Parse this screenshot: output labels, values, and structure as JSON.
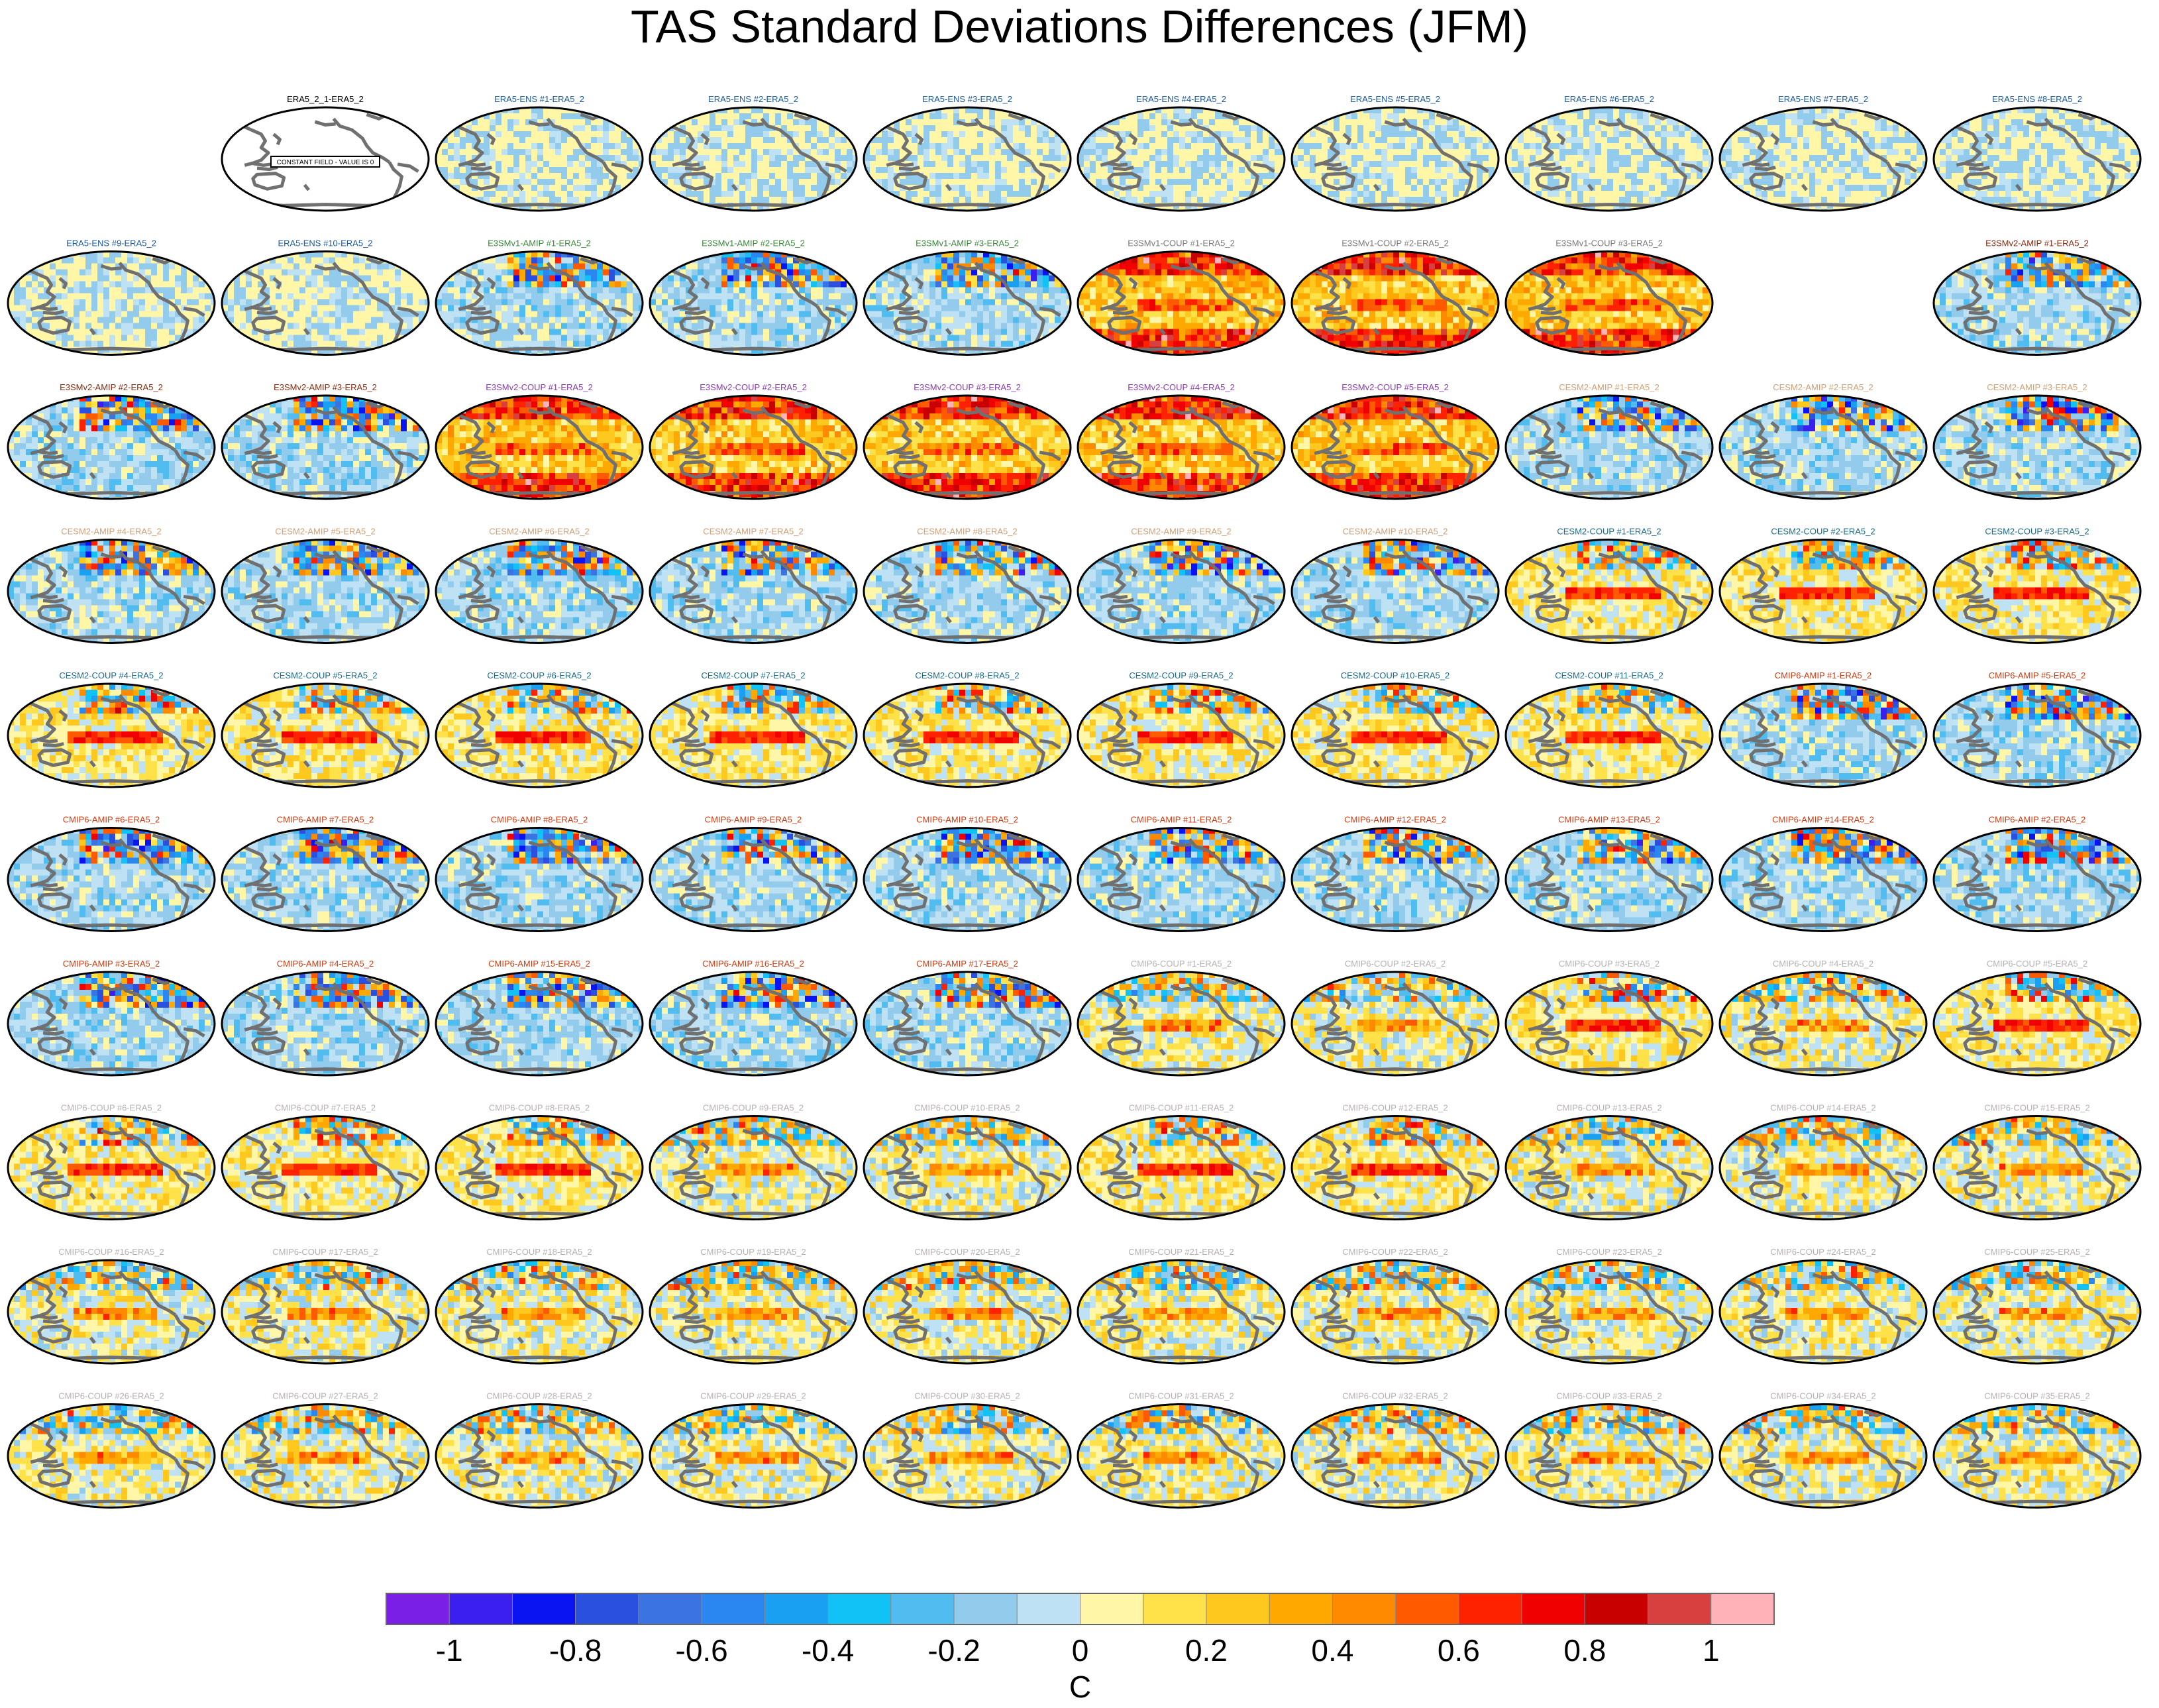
{
  "figure": {
    "title": "TAS Standard Deviations Differences (JFM)"
  },
  "chart_data": {
    "type": "heatmap",
    "title": "TAS Standard Deviations Differences (JFM)",
    "description_of_panels": "Grid of global maps (Pacific-centred elliptical projection) showing model minus ERA5 standard deviation differences",
    "units_label": "C",
    "colorbar": {
      "colors": [
        "#7a1fe6",
        "#3a1ff0",
        "#0a14f2",
        "#2a50e0",
        "#3b74e2",
        "#2a86f0",
        "#1aa0f2",
        "#10c2f5",
        "#50bcef",
        "#92cbec",
        "#bfe1f4",
        "#fff6a8",
        "#ffe24a",
        "#ffc81e",
        "#ffa800",
        "#ff8a00",
        "#ff5a00",
        "#ff2200",
        "#f00000",
        "#c80000",
        "#d84040",
        "#ffb2b8"
      ],
      "tick_labels": [
        "-1",
        "-0.8",
        "-0.6",
        "-0.4",
        "-0.2",
        "0",
        "0.2",
        "0.4",
        "0.6",
        "0.8",
        "1"
      ],
      "range": [
        -1.1,
        1.1
      ]
    },
    "panels": [
      {
        "label": "",
        "blank": true
      },
      {
        "label": "ERA5_2_1-ERA5_2",
        "color": "#000000",
        "style": "empty",
        "note": "CONSTANT FIELD - VALUE IS 0"
      },
      {
        "label": "ERA5-ENS #1-ERA5_2",
        "color": "#1a5aa0",
        "style": "ens"
      },
      {
        "label": "ERA5-ENS #2-ERA5_2",
        "color": "#1a5aa0",
        "style": "ens"
      },
      {
        "label": "ERA5-ENS #3-ERA5_2",
        "color": "#1a5aa0",
        "style": "ens"
      },
      {
        "label": "ERA5-ENS #4-ERA5_2",
        "color": "#1a5aa0",
        "style": "ens"
      },
      {
        "label": "ERA5-ENS #5-ERA5_2",
        "color": "#1a5aa0",
        "style": "ens"
      },
      {
        "label": "ERA5-ENS #6-ERA5_2",
        "color": "#1a5aa0",
        "style": "ens"
      },
      {
        "label": "ERA5-ENS #7-ERA5_2",
        "color": "#1a5aa0",
        "style": "ens"
      },
      {
        "label": "ERA5-ENS #8-ERA5_2",
        "color": "#1a5aa0",
        "style": "ens"
      },
      {
        "label": "ERA5-ENS #9-ERA5_2",
        "color": "#1a5aa0",
        "style": "ens"
      },
      {
        "label": "ERA5-ENS #10-ERA5_2",
        "color": "#1a5aa0",
        "style": "ens"
      },
      {
        "label": "E3SMv1-AMIP #1-ERA5_2",
        "color": "#3a8a3a",
        "style": "amip"
      },
      {
        "label": "E3SMv1-AMIP #2-ERA5_2",
        "color": "#3a8a3a",
        "style": "amip"
      },
      {
        "label": "E3SMv1-AMIP #3-ERA5_2",
        "color": "#3a8a3a",
        "style": "amip"
      },
      {
        "label": "E3SMv1-COUP #1-ERA5_2",
        "color": "#7a7a7a",
        "style": "coup_warm"
      },
      {
        "label": "E3SMv1-COUP #2-ERA5_2",
        "color": "#7a7a7a",
        "style": "coup_warm"
      },
      {
        "label": "E3SMv1-COUP #3-ERA5_2",
        "color": "#7a7a7a",
        "style": "coup_warm"
      },
      {
        "label": "",
        "blank": true
      },
      {
        "label": "E3SMv2-AMIP #1-ERA5_2",
        "color": "#8a2a10",
        "style": "amip"
      },
      {
        "label": "E3SMv2-AMIP #2-ERA5_2",
        "color": "#8a2a10",
        "style": "amip"
      },
      {
        "label": "E3SMv2-AMIP #3-ERA5_2",
        "color": "#8a2a10",
        "style": "amip"
      },
      {
        "label": "E3SMv2-COUP #1-ERA5_2",
        "color": "#8a3ab0",
        "style": "coup_warm"
      },
      {
        "label": "E3SMv2-COUP #2-ERA5_2",
        "color": "#8a3ab0",
        "style": "coup_warm"
      },
      {
        "label": "E3SMv2-COUP #3-ERA5_2",
        "color": "#8a3ab0",
        "style": "coup_warm"
      },
      {
        "label": "E3SMv2-COUP #4-ERA5_2",
        "color": "#8a3ab0",
        "style": "coup_warm"
      },
      {
        "label": "E3SMv2-COUP #5-ERA5_2",
        "color": "#8a3ab0",
        "style": "coup_warm"
      },
      {
        "label": "CESM2-AMIP #1-ERA5_2",
        "color": "#d0a078",
        "style": "amip"
      },
      {
        "label": "CESM2-AMIP #2-ERA5_2",
        "color": "#d0a078",
        "style": "amip"
      },
      {
        "label": "CESM2-AMIP #3-ERA5_2",
        "color": "#d0a078",
        "style": "amip"
      },
      {
        "label": "CESM2-AMIP #4-ERA5_2",
        "color": "#d0a078",
        "style": "amip"
      },
      {
        "label": "CESM2-AMIP #5-ERA5_2",
        "color": "#d0a078",
        "style": "amip"
      },
      {
        "label": "CESM2-AMIP #6-ERA5_2",
        "color": "#d0a078",
        "style": "amip"
      },
      {
        "label": "CESM2-AMIP #7-ERA5_2",
        "color": "#d0a078",
        "style": "amip"
      },
      {
        "label": "CESM2-AMIP #8-ERA5_2",
        "color": "#d0a078",
        "style": "amip"
      },
      {
        "label": "CESM2-AMIP #9-ERA5_2",
        "color": "#d0a078",
        "style": "amip"
      },
      {
        "label": "CESM2-AMIP #10-ERA5_2",
        "color": "#d0a078",
        "style": "amip"
      },
      {
        "label": "CESM2-COUP #1-ERA5_2",
        "color": "#1a6a8a",
        "style": "coup_enso"
      },
      {
        "label": "CESM2-COUP #2-ERA5_2",
        "color": "#1a6a8a",
        "style": "coup_enso"
      },
      {
        "label": "CESM2-COUP #3-ERA5_2",
        "color": "#1a6a8a",
        "style": "coup_enso"
      },
      {
        "label": "CESM2-COUP #4-ERA5_2",
        "color": "#1a6a8a",
        "style": "coup_enso"
      },
      {
        "label": "CESM2-COUP #5-ERA5_2",
        "color": "#1a6a8a",
        "style": "coup_enso"
      },
      {
        "label": "CESM2-COUP #6-ERA5_2",
        "color": "#1a6a8a",
        "style": "coup_enso"
      },
      {
        "label": "CESM2-COUP #7-ERA5_2",
        "color": "#1a6a8a",
        "style": "coup_enso"
      },
      {
        "label": "CESM2-COUP #8-ERA5_2",
        "color": "#1a6a8a",
        "style": "coup_enso"
      },
      {
        "label": "CESM2-COUP #9-ERA5_2",
        "color": "#1a6a8a",
        "style": "coup_enso"
      },
      {
        "label": "CESM2-COUP #10-ERA5_2",
        "color": "#1a6a8a",
        "style": "coup_enso"
      },
      {
        "label": "CESM2-COUP #11-ERA5_2",
        "color": "#1a6a8a",
        "style": "coup_enso"
      },
      {
        "label": "CMIP6-AMIP #1-ERA5_2",
        "color": "#d03a10",
        "style": "amip"
      },
      {
        "label": "CMIP6-AMIP #5-ERA5_2",
        "color": "#d03a10",
        "style": "amip"
      },
      {
        "label": "CMIP6-AMIP #6-ERA5_2",
        "color": "#d03a10",
        "style": "amip"
      },
      {
        "label": "CMIP6-AMIP #7-ERA5_2",
        "color": "#d03a10",
        "style": "amip"
      },
      {
        "label": "CMIP6-AMIP #8-ERA5_2",
        "color": "#d03a10",
        "style": "amip"
      },
      {
        "label": "CMIP6-AMIP #9-ERA5_2",
        "color": "#d03a10",
        "style": "amip"
      },
      {
        "label": "CMIP6-AMIP #10-ERA5_2",
        "color": "#d03a10",
        "style": "amip"
      },
      {
        "label": "CMIP6-AMIP #11-ERA5_2",
        "color": "#d03a10",
        "style": "amip"
      },
      {
        "label": "CMIP6-AMIP #12-ERA5_2",
        "color": "#d03a10",
        "style": "amip"
      },
      {
        "label": "CMIP6-AMIP #13-ERA5_2",
        "color": "#d03a10",
        "style": "amip"
      },
      {
        "label": "CMIP6-AMIP #14-ERA5_2",
        "color": "#d03a10",
        "style": "amip"
      },
      {
        "label": "CMIP6-AMIP #2-ERA5_2",
        "color": "#d03a10",
        "style": "amip"
      },
      {
        "label": "CMIP6-AMIP #3-ERA5_2",
        "color": "#d03a10",
        "style": "amip"
      },
      {
        "label": "CMIP6-AMIP #4-ERA5_2",
        "color": "#d03a10",
        "style": "amip"
      },
      {
        "label": "CMIP6-AMIP #15-ERA5_2",
        "color": "#d03a10",
        "style": "amip"
      },
      {
        "label": "CMIP6-AMIP #16-ERA5_2",
        "color": "#d03a10",
        "style": "amip"
      },
      {
        "label": "CMIP6-AMIP #17-ERA5_2",
        "color": "#d03a10",
        "style": "amip"
      },
      {
        "label": "CMIP6-COUP #1-ERA5_2",
        "color": "#b8b0b0",
        "style": "coup"
      },
      {
        "label": "CMIP6-COUP #2-ERA5_2",
        "color": "#b8b0b0",
        "style": "coup"
      },
      {
        "label": "CMIP6-COUP #3-ERA5_2",
        "color": "#b8b0b0",
        "style": "coup_enso"
      },
      {
        "label": "CMIP6-COUP #4-ERA5_2",
        "color": "#b8b0b0",
        "style": "coup"
      },
      {
        "label": "CMIP6-COUP #5-ERA5_2",
        "color": "#b8b0b0",
        "style": "coup_enso"
      },
      {
        "label": "CMIP6-COUP #6-ERA5_2",
        "color": "#b8b0b0",
        "style": "coup_enso"
      },
      {
        "label": "CMIP6-COUP #7-ERA5_2",
        "color": "#b8b0b0",
        "style": "coup_enso"
      },
      {
        "label": "CMIP6-COUP #8-ERA5_2",
        "color": "#b8b0b0",
        "style": "coup_enso"
      },
      {
        "label": "CMIP6-COUP #9-ERA5_2",
        "color": "#b8b0b0",
        "style": "coup"
      },
      {
        "label": "CMIP6-COUP #10-ERA5_2",
        "color": "#b8b0b0",
        "style": "coup"
      },
      {
        "label": "CMIP6-COUP #11-ERA5_2",
        "color": "#b8b0b0",
        "style": "coup_enso"
      },
      {
        "label": "CMIP6-COUP #12-ERA5_2",
        "color": "#b8b0b0",
        "style": "coup_enso"
      },
      {
        "label": "CMIP6-COUP #13-ERA5_2",
        "color": "#b8b0b0",
        "style": "coup"
      },
      {
        "label": "CMIP6-COUP #14-ERA5_2",
        "color": "#b8b0b0",
        "style": "coup"
      },
      {
        "label": "CMIP6-COUP #15-ERA5_2",
        "color": "#b8b0b0",
        "style": "coup"
      },
      {
        "label": "CMIP6-COUP #16-ERA5_2",
        "color": "#b8b0b0",
        "style": "coup"
      },
      {
        "label": "CMIP6-COUP #17-ERA5_2",
        "color": "#b8b0b0",
        "style": "coup"
      },
      {
        "label": "CMIP6-COUP #18-ERA5_2",
        "color": "#b8b0b0",
        "style": "coup"
      },
      {
        "label": "CMIP6-COUP #19-ERA5_2",
        "color": "#b8b0b0",
        "style": "coup"
      },
      {
        "label": "CMIP6-COUP #20-ERA5_2",
        "color": "#b8b0b0",
        "style": "coup"
      },
      {
        "label": "CMIP6-COUP #21-ERA5_2",
        "color": "#b8b0b0",
        "style": "coup"
      },
      {
        "label": "CMIP6-COUP #22-ERA5_2",
        "color": "#b8b0b0",
        "style": "coup"
      },
      {
        "label": "CMIP6-COUP #23-ERA5_2",
        "color": "#b8b0b0",
        "style": "coup"
      },
      {
        "label": "CMIP6-COUP #24-ERA5_2",
        "color": "#b8b0b0",
        "style": "coup"
      },
      {
        "label": "CMIP6-COUP #25-ERA5_2",
        "color": "#b8b0b0",
        "style": "coup"
      },
      {
        "label": "CMIP6-COUP #26-ERA5_2",
        "color": "#b8b0b0",
        "style": "coup"
      },
      {
        "label": "CMIP6-COUP #27-ERA5_2",
        "color": "#b8b0b0",
        "style": "coup"
      },
      {
        "label": "CMIP6-COUP #28-ERA5_2",
        "color": "#b8b0b0",
        "style": "coup"
      },
      {
        "label": "CMIP6-COUP #29-ERA5_2",
        "color": "#b8b0b0",
        "style": "coup"
      },
      {
        "label": "CMIP6-COUP #30-ERA5_2",
        "color": "#b8b0b0",
        "style": "coup"
      },
      {
        "label": "CMIP6-COUP #31-ERA5_2",
        "color": "#b8b0b0",
        "style": "coup"
      },
      {
        "label": "CMIP6-COUP #32-ERA5_2",
        "color": "#b8b0b0",
        "style": "coup"
      },
      {
        "label": "CMIP6-COUP #33-ERA5_2",
        "color": "#b8b0b0",
        "style": "coup"
      },
      {
        "label": "CMIP6-COUP #34-ERA5_2",
        "color": "#b8b0b0",
        "style": "coup"
      },
      {
        "label": "CMIP6-COUP #35-ERA5_2",
        "color": "#b8b0b0",
        "style": "coup"
      }
    ]
  }
}
